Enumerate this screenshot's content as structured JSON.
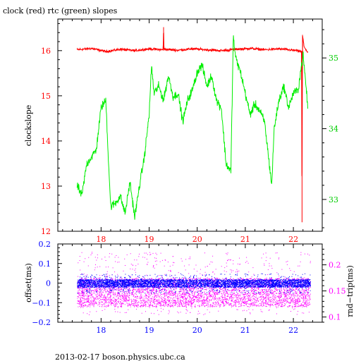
{
  "figure": {
    "title": "clock (red) rtc (green) slopes",
    "footer": "2013-02-17  boson.physics.ubc.ca",
    "colors": {
      "clock": "#ff0000",
      "rtc": "#00ee00",
      "offset": "#0000ff",
      "rndtrip": "#ff00ff",
      "axis": "#000000"
    }
  },
  "chart_data": [
    {
      "type": "line",
      "title": "clock (red) rtc (green) slopes",
      "xlabel": "",
      "ylabel": "clockslope",
      "y2label": "",
      "xlim": [
        17.1,
        22.6
      ],
      "ylim": [
        12.0,
        16.7
      ],
      "y2lim": [
        32.55,
        35.55
      ],
      "x_ticks": [
        18,
        19,
        20,
        21,
        22
      ],
      "y_ticks": [
        12,
        13,
        14,
        15,
        16
      ],
      "y2_ticks": [
        33,
        34,
        35
      ],
      "x_tick_color": "#ff0000",
      "y_tick_color": "#ff0000",
      "y2_tick_color": "#00cc00",
      "series": [
        {
          "axis": "left",
          "color": "#ff0000",
          "x": [
            17.5,
            17.8,
            18.1,
            18.4,
            18.7,
            19.0,
            19.29,
            19.3,
            19.31,
            19.6,
            19.9,
            20.2,
            20.5,
            20.8,
            21.1,
            21.4,
            21.7,
            22.0,
            22.17,
            22.18,
            22.19,
            22.22,
            22.3
          ],
          "y": [
            16.02,
            16.05,
            15.98,
            16.03,
            16.0,
            16.04,
            16.02,
            16.52,
            16.03,
            16.01,
            16.04,
            16.02,
            16.0,
            16.03,
            16.05,
            16.02,
            16.04,
            16.01,
            15.98,
            12.2,
            16.35,
            16.1,
            15.95
          ]
        },
        {
          "axis": "right",
          "color": "#00ee00",
          "x": [
            17.5,
            17.6,
            17.7,
            17.8,
            17.9,
            18.0,
            18.1,
            18.15,
            18.2,
            18.3,
            18.4,
            18.5,
            18.6,
            18.7,
            18.8,
            18.9,
            19.0,
            19.05,
            19.1,
            19.2,
            19.3,
            19.4,
            19.5,
            19.6,
            19.7,
            19.8,
            19.9,
            20.0,
            20.1,
            20.2,
            20.3,
            20.4,
            20.5,
            20.6,
            20.7,
            20.75,
            20.8,
            20.9,
            21.0,
            21.1,
            21.2,
            21.3,
            21.4,
            21.5,
            21.55,
            21.6,
            21.7,
            21.8,
            21.9,
            22.0,
            22.1,
            22.15,
            22.2,
            22.25,
            22.3
          ],
          "y": [
            33.2,
            33.05,
            33.5,
            33.6,
            33.7,
            34.3,
            34.4,
            33.6,
            32.9,
            32.95,
            33.05,
            32.8,
            33.25,
            32.75,
            33.2,
            33.6,
            34.2,
            34.9,
            34.5,
            34.6,
            34.4,
            34.75,
            34.45,
            34.5,
            34.1,
            34.4,
            34.55,
            34.8,
            34.9,
            34.6,
            34.75,
            34.4,
            34.3,
            33.5,
            33.4,
            35.3,
            35.0,
            34.8,
            34.5,
            34.2,
            34.35,
            34.25,
            34.1,
            33.5,
            33.2,
            34.0,
            34.4,
            34.6,
            34.3,
            34.5,
            34.55,
            34.8,
            35.05,
            34.7,
            34.3
          ]
        }
      ]
    },
    {
      "type": "scatter",
      "xlabel": "",
      "ylabel": "offset(ms)",
      "y2label": "rnd−trip(ms)",
      "xlim": [
        17.1,
        22.6
      ],
      "ylim": [
        -0.2,
        0.2
      ],
      "y2lim": [
        0.09,
        0.24
      ],
      "x_ticks": [
        18,
        19,
        20,
        21,
        22
      ],
      "y_ticks": [
        -0.2,
        -0.1,
        0,
        0.1,
        0.2
      ],
      "y_tick_labels": [
        "−0.2",
        "−0.1",
        "0",
        "0.1",
        "0.2"
      ],
      "y2_ticks": [
        0.1,
        0.15,
        0.2
      ],
      "x_tick_color": "#0000ff",
      "y_tick_color": "#0000ff",
      "y2_tick_color": "#ff00ff",
      "series": [
        {
          "axis": "left",
          "color": "#0000ff",
          "x_range": [
            17.5,
            22.35
          ],
          "y_band": [
            -0.02,
            0.02
          ],
          "y_spread": [
            -0.05,
            0.05
          ]
        },
        {
          "axis": "right",
          "color": "#ff00ff",
          "x_range": [
            17.5,
            22.35
          ],
          "y_band": [
            0.12,
            0.175
          ],
          "y_spread": [
            0.105,
            0.225
          ]
        }
      ]
    }
  ]
}
